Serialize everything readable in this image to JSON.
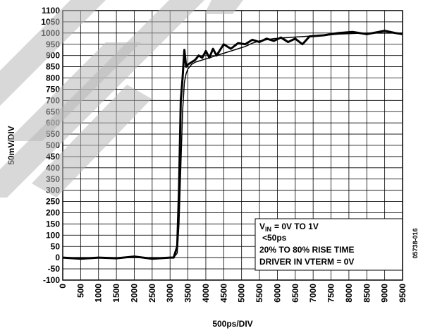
{
  "chart_data": {
    "type": "line",
    "xlabel": "500ps/DIV",
    "ylabel": "50mV/DIV",
    "side_code": "05738-016",
    "annotation": {
      "vin": {
        "base": "V",
        "sub": "IN",
        "rest": "= 0V TO 1V"
      },
      "lines": [
        "<50ps",
        "20% TO 80% RISE TIME",
        "DRIVER IN VTERM = 0V"
      ]
    },
    "xlim": [
      0,
      9500
    ],
    "ylim": [
      -100,
      1100
    ],
    "xticks": [
      0,
      500,
      1000,
      1500,
      2000,
      2500,
      3000,
      3500,
      4000,
      4500,
      5000,
      5500,
      6000,
      6500,
      7000,
      7500,
      8000,
      8500,
      9000,
      9500
    ],
    "yticks": [
      -100,
      -50,
      0,
      50,
      100,
      150,
      200,
      250,
      300,
      350,
      400,
      450,
      500,
      550,
      600,
      650,
      700,
      750,
      800,
      850,
      900,
      950,
      1000,
      1050,
      1100
    ],
    "grid": true,
    "x": [
      0,
      500,
      1000,
      1500,
      2000,
      2500,
      3000,
      3100,
      3200,
      3250,
      3300,
      3350,
      3400,
      3450,
      3500,
      3600,
      3700,
      3800,
      3900,
      4000,
      4100,
      4200,
      4300,
      4500,
      4700,
      4900,
      5100,
      5300,
      5500,
      5700,
      5900,
      6100,
      6300,
      6500,
      6700,
      6900,
      7300,
      7700,
      8100,
      8500,
      9000,
      9300,
      9500
    ],
    "series": [
      {
        "color": "#000000",
        "width": 3,
        "values": [
          0,
          -5,
          0,
          -3,
          5,
          -5,
          0,
          0,
          50,
          300,
          700,
          800,
          925,
          850,
          860,
          870,
          880,
          900,
          890,
          920,
          890,
          930,
          900,
          950,
          930,
          955,
          950,
          970,
          960,
          975,
          965,
          980,
          960,
          975,
          950,
          985,
          990,
          1000,
          1005,
          995,
          1010,
          1000,
          995
        ]
      },
      {
        "color": "#000000",
        "width": 1.5,
        "values": [
          0,
          0,
          0,
          0,
          0,
          0,
          0,
          0,
          20,
          150,
          400,
          650,
          780,
          820,
          840,
          860,
          870,
          875,
          880,
          885,
          890,
          895,
          900,
          910,
          920,
          930,
          940,
          955,
          965,
          970,
          975,
          978,
          980,
          982,
          984,
          986,
          990,
          995,
          998,
          1000,
          1000,
          1000,
          1000
        ]
      }
    ]
  }
}
